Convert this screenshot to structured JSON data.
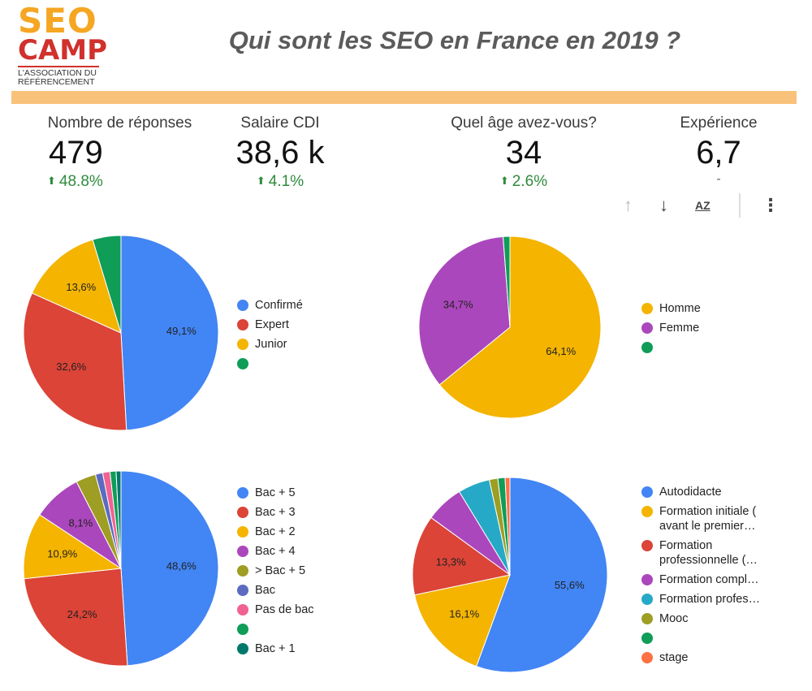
{
  "logo": {
    "line1": "SEO",
    "line2": "CAMP",
    "sub1": "L'ASSOCIATION DU",
    "sub2": "RÉFÉRENCEMENT",
    "color_orange": "#f5a623",
    "color_red": "#d0312d"
  },
  "title": "Qui sont les SEO en France en 2019 ?",
  "kpis": [
    {
      "label": "Nombre de réponses",
      "value": "479",
      "delta": "48.8%",
      "dash": ""
    },
    {
      "label": "Salaire CDI",
      "value": "38,6 k",
      "delta": "4.1%",
      "dash": ""
    },
    {
      "label": "Quel âge avez-vous?",
      "value": "34",
      "delta": "2.6%",
      "dash": ""
    },
    {
      "label": "Expérience",
      "value": "6,7",
      "delta": "",
      "dash": "-"
    }
  ],
  "toolbar": {
    "icons": [
      "arrow-up-icon",
      "arrow-down-icon",
      "sort-az-icon",
      "more-vert-icon"
    ],
    "sort_az_text": "AZ"
  },
  "chart_data": [
    {
      "type": "pie",
      "slices": [
        {
          "label": "Confirmé",
          "value": 49.1,
          "color": "#4285f4",
          "text": "49,1%"
        },
        {
          "label": "Expert",
          "value": 32.6,
          "color": "#db4437",
          "text": "32,6%"
        },
        {
          "label": "Junior",
          "value": 13.6,
          "color": "#f4b400",
          "text": "13,6%"
        },
        {
          "label": "",
          "value": 4.7,
          "color": "#0f9d58",
          "text": ""
        }
      ]
    },
    {
      "type": "pie",
      "slices": [
        {
          "label": "Homme",
          "value": 64.1,
          "color": "#f4b400",
          "text": "64,1%"
        },
        {
          "label": "Femme",
          "value": 34.7,
          "color": "#ab47bc",
          "text": "34,7%"
        },
        {
          "label": "",
          "value": 1.2,
          "color": "#0f9d58",
          "text": ""
        }
      ]
    },
    {
      "type": "pie",
      "slices": [
        {
          "label": "Bac + 5",
          "value": 48.6,
          "color": "#4285f4",
          "text": "48,6%"
        },
        {
          "label": "Bac + 3",
          "value": 24.2,
          "color": "#db4437",
          "text": "24,2%"
        },
        {
          "label": "Bac + 2",
          "value": 10.9,
          "color": "#f4b400",
          "text": "10,9%"
        },
        {
          "label": "Bac + 4",
          "value": 8.1,
          "color": "#ab47bc",
          "text": "8,1%"
        },
        {
          "label": "> Bac + 5",
          "value": 3.3,
          "color": "#9e9d24",
          "text": ""
        },
        {
          "label": "Bac",
          "value": 1.2,
          "color": "#5c6bc0",
          "text": ""
        },
        {
          "label": "Pas de bac",
          "value": 1.2,
          "color": "#f06292",
          "text": ""
        },
        {
          "label": "",
          "value": 1.0,
          "color": "#0f9d58",
          "text": ""
        },
        {
          "label": "Bac + 1",
          "value": 0.8,
          "color": "#00796b",
          "text": ""
        }
      ]
    },
    {
      "type": "pie",
      "slices": [
        {
          "label": "Autodidacte",
          "value": 55.6,
          "color": "#4285f4",
          "text": "55,6%"
        },
        {
          "label": "Formation initiale ( avant le premier…",
          "value": 16.1,
          "color": "#f4b400",
          "text": "16,1%"
        },
        {
          "label": "Formation professionnelle (…",
          "value": 13.3,
          "color": "#db4437",
          "text": "13,3%"
        },
        {
          "label": "Formation compl…",
          "value": 6.3,
          "color": "#ab47bc",
          "text": ""
        },
        {
          "label": "Formation profes…",
          "value": 5.3,
          "color": "#26a9c6",
          "text": ""
        },
        {
          "label": "Mooc",
          "value": 1.4,
          "color": "#9e9d24",
          "text": ""
        },
        {
          "label": "",
          "value": 1.2,
          "color": "#0f9d58",
          "text": ""
        },
        {
          "label": "stage",
          "value": 0.8,
          "color": "#ff7043",
          "text": ""
        }
      ]
    }
  ]
}
